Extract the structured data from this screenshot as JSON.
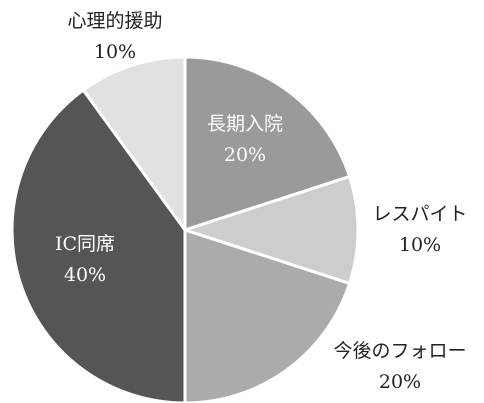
{
  "chart_data": {
    "type": "pie",
    "categories": [
      "長期入院",
      "レスパイト",
      "今後のフォロー",
      "IC同席",
      "心理的援助"
    ],
    "values": [
      20,
      10,
      20,
      40,
      10
    ],
    "value_labels": [
      "20%",
      "10%",
      "20%",
      "40%",
      "10%"
    ],
    "colors": [
      "#9a9a9a",
      "#cdcdcd",
      "#ababab",
      "#555555",
      "#e1e1e1"
    ]
  }
}
